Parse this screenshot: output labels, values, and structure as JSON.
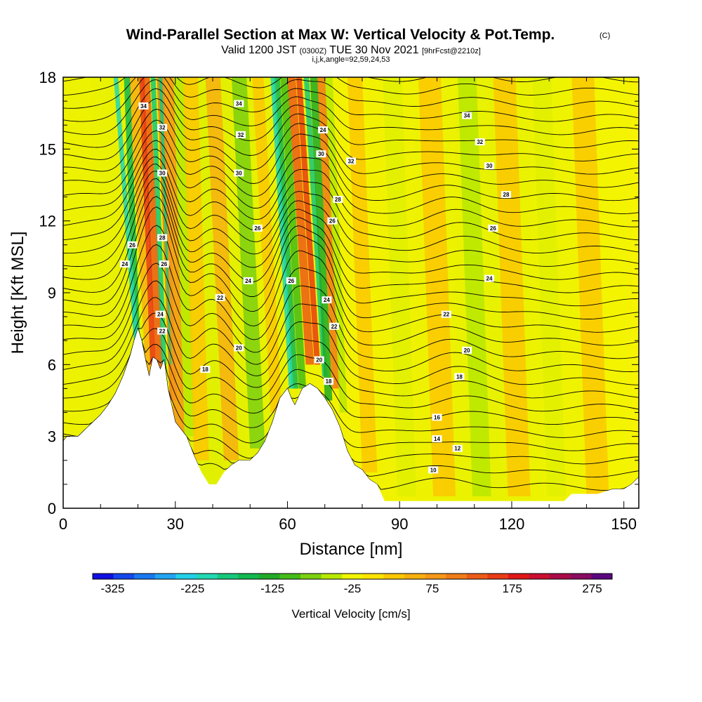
{
  "title": "Wind-Parallel Section at Max W: Vertical Velocity & Pot.Temp.",
  "copyright": "(C)",
  "subtitle": {
    "valid": "Valid 1200 JST",
    "utc": "(0300Z)",
    "date": "TUE 30 Nov 2021",
    "fcst": "[9hrFcst@2210z]"
  },
  "indices": "i,j,k,angle=92,59,24,53",
  "chart_data": {
    "type": "heatmap",
    "xlabel": "Distance [nm]",
    "ylabel": "Height [Kft MSL]",
    "xlim": [
      0,
      154
    ],
    "ylim": [
      0,
      18
    ],
    "xticks": [
      "0",
      "30",
      "60",
      "90",
      "120",
      "150"
    ],
    "xtick_values": [
      0,
      30,
      60,
      90,
      120,
      150
    ],
    "yticks": [
      "0",
      "3",
      "6",
      "9",
      "12",
      "15",
      "18"
    ],
    "ytick_values": [
      0,
      3,
      6,
      9,
      12,
      15,
      18
    ],
    "grid": false,
    "colorbar": {
      "label": "Vertical Velocity [cm/s]",
      "ticks": [
        "-325",
        "-225",
        "-125",
        "-25",
        "75",
        "175",
        "275"
      ],
      "tick_values": [
        -325,
        -225,
        -125,
        -25,
        75,
        175,
        275
      ],
      "colors": [
        "#1010e0",
        "#1448ec",
        "#1a78f0",
        "#22a4f2",
        "#22d0e8",
        "#20d8b4",
        "#16c87c",
        "#12b850",
        "#20aa28",
        "#44bc18",
        "#7cd010",
        "#b8e800",
        "#f0f400",
        "#ffe400",
        "#fcc800",
        "#f8b010",
        "#f49818",
        "#f07c18",
        "#ec5c18",
        "#e83c14",
        "#e01818",
        "#c81030",
        "#a80c48",
        "#880c60",
        "#5a0880"
      ],
      "range": [
        -350,
        300
      ]
    },
    "terrain_kft": [
      [
        0,
        2.8
      ],
      [
        1,
        3
      ],
      [
        4,
        3
      ],
      [
        6,
        3.3
      ],
      [
        8,
        3.6
      ],
      [
        10,
        3.9
      ],
      [
        12,
        4.3
      ],
      [
        14,
        4.8
      ],
      [
        16,
        5.5
      ],
      [
        18,
        6.4
      ],
      [
        19,
        7
      ],
      [
        20,
        7.5
      ],
      [
        21,
        7
      ],
      [
        22,
        6.2
      ],
      [
        23,
        5.5
      ],
      [
        24,
        6.3
      ],
      [
        25,
        6.2
      ],
      [
        26,
        5.8
      ],
      [
        27,
        6.2
      ],
      [
        28,
        5
      ],
      [
        29,
        4.3
      ],
      [
        30,
        3.6
      ],
      [
        33,
        3
      ],
      [
        35,
        2.2
      ],
      [
        37,
        1.5
      ],
      [
        39,
        1
      ],
      [
        41,
        1
      ],
      [
        43,
        1.5
      ],
      [
        45,
        1.8
      ],
      [
        47,
        2
      ],
      [
        50,
        2
      ],
      [
        52,
        2.3
      ],
      [
        54,
        2.8
      ],
      [
        56,
        3.6
      ],
      [
        58,
        4.6
      ],
      [
        60,
        5
      ],
      [
        61,
        4.6
      ],
      [
        62,
        4.3
      ],
      [
        64,
        5
      ],
      [
        66,
        5.2
      ],
      [
        68,
        5
      ],
      [
        70,
        4.6
      ],
      [
        72,
        4.1
      ],
      [
        74,
        3.4
      ],
      [
        76,
        2.4
      ],
      [
        78,
        1.8
      ],
      [
        80,
        1.6
      ],
      [
        82,
        1.2
      ],
      [
        84,
        1
      ],
      [
        86,
        0.3
      ],
      [
        134,
        0.3
      ],
      [
        136,
        0.6
      ],
      [
        143,
        0.6
      ],
      [
        147,
        0.8
      ],
      [
        150,
        0.8
      ],
      [
        152,
        1
      ],
      [
        154,
        1.3
      ]
    ],
    "contour_labels": [
      {
        "text": "34",
        "x": 21.5,
        "y": 16.8
      },
      {
        "text": "34",
        "x": 47,
        "y": 16.9
      },
      {
        "text": "34",
        "x": 108,
        "y": 16.4
      },
      {
        "text": "32",
        "x": 26.5,
        "y": 15.9
      },
      {
        "text": "32",
        "x": 47.5,
        "y": 15.6
      },
      {
        "text": "32",
        "x": 111.5,
        "y": 15.3
      },
      {
        "text": "32",
        "x": 77,
        "y": 14.5
      },
      {
        "text": "24",
        "x": 69.5,
        "y": 15.8
      },
      {
        "text": "30",
        "x": 69,
        "y": 14.8
      },
      {
        "text": "30",
        "x": 26.5,
        "y": 14
      },
      {
        "text": "30",
        "x": 47,
        "y": 14
      },
      {
        "text": "30",
        "x": 114,
        "y": 14.3
      },
      {
        "text": "28",
        "x": 73.5,
        "y": 12.9
      },
      {
        "text": "28",
        "x": 118.5,
        "y": 13.1
      },
      {
        "text": "26",
        "x": 72,
        "y": 12
      },
      {
        "text": "26",
        "x": 52,
        "y": 11.7
      },
      {
        "text": "26",
        "x": 115,
        "y": 11.7
      },
      {
        "text": "28",
        "x": 26.5,
        "y": 11.3
      },
      {
        "text": "26",
        "x": 18.5,
        "y": 11
      },
      {
        "text": "24",
        "x": 16.5,
        "y": 10.2
      },
      {
        "text": "26",
        "x": 27,
        "y": 10.2
      },
      {
        "text": "24",
        "x": 49.5,
        "y": 9.5
      },
      {
        "text": "24",
        "x": 114,
        "y": 9.6
      },
      {
        "text": "26",
        "x": 61,
        "y": 9.5
      },
      {
        "text": "22",
        "x": 42,
        "y": 8.8
      },
      {
        "text": "24",
        "x": 70.5,
        "y": 8.7
      },
      {
        "text": "22",
        "x": 102.5,
        "y": 8.1
      },
      {
        "text": "24",
        "x": 26,
        "y": 8.1
      },
      {
        "text": "22",
        "x": 26.5,
        "y": 7.4
      },
      {
        "text": "22",
        "x": 72.5,
        "y": 7.6
      },
      {
        "text": "20",
        "x": 47,
        "y": 6.7
      },
      {
        "text": "20",
        "x": 108,
        "y": 6.6
      },
      {
        "text": "20",
        "x": 68.5,
        "y": 6.2
      },
      {
        "text": "18",
        "x": 38,
        "y": 5.8
      },
      {
        "text": "18",
        "x": 71,
        "y": 5.3
      },
      {
        "text": "18",
        "x": 106,
        "y": 5.5
      },
      {
        "text": "16",
        "x": 100,
        "y": 3.8
      },
      {
        "text": "14",
        "x": 100,
        "y": 2.9
      },
      {
        "text": "12",
        "x": 105.5,
        "y": 2.5
      },
      {
        "text": "10",
        "x": 99,
        "y": 1.6
      }
    ]
  }
}
